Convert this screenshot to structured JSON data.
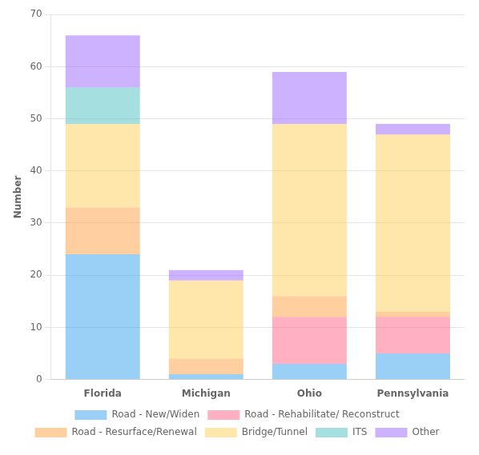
{
  "chart_data": {
    "type": "bar",
    "stacked": true,
    "categories": [
      "Florida",
      "Michigan",
      "Ohio",
      "Pennsylvania"
    ],
    "series": [
      {
        "name": "Road - New/Widen",
        "values": [
          24,
          1,
          3,
          5
        ]
      },
      {
        "name": "Road - Rehabilitate/ Reconstruct",
        "values": [
          0,
          0,
          9,
          7
        ]
      },
      {
        "name": "Road - Resurface/Renewal",
        "values": [
          9,
          3,
          4,
          1
        ]
      },
      {
        "name": "Bridge/Tunnel",
        "values": [
          16,
          15,
          33,
          34
        ]
      },
      {
        "name": "ITS",
        "values": [
          7,
          0,
          0,
          0
        ]
      },
      {
        "name": "Other",
        "values": [
          10,
          2,
          10,
          2
        ]
      }
    ],
    "ylabel": "Number",
    "ylim": [
      0,
      70
    ],
    "yticks": [
      0,
      10,
      20,
      30,
      40,
      50,
      60,
      70
    ],
    "grid": true,
    "legend": "bottom"
  }
}
